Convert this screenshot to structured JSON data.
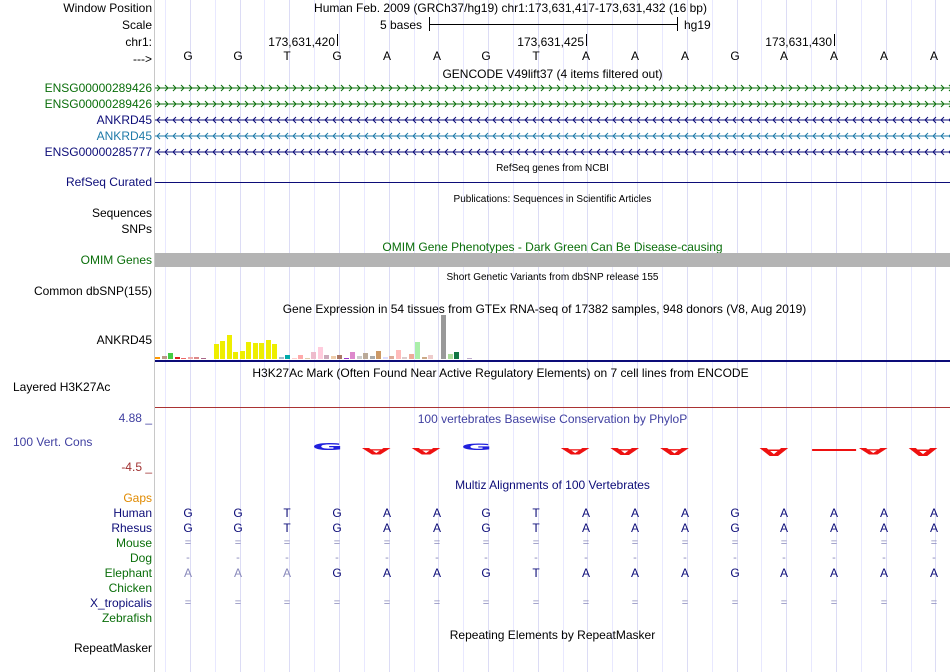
{
  "header": {
    "window_position_label": "Window Position",
    "scale_label": "Scale",
    "chrom_label": "chr1:",
    "arrow_label": "--->",
    "assembly_position": "Human Feb. 2009 (GRCh37/hg19)   chr1:173,631,417-173,631,432 (16 bp)",
    "scale_text": "5 bases",
    "scale_db": "hg19",
    "ticks": [
      "173,631,420",
      "173,631,425",
      "173,631,430"
    ],
    "sequence": [
      "G",
      "G",
      "T",
      "G",
      "A",
      "A",
      "G",
      "T",
      "A",
      "A",
      "A",
      "G",
      "A",
      "A",
      "A",
      "A"
    ]
  },
  "gencode": {
    "title": "GENCODE V49lift37 (4 items filtered out)",
    "genes": [
      {
        "name": "ENSG00000289426",
        "strand": ">",
        "color": "#0a6e0a"
      },
      {
        "name": "ENSG00000289426",
        "strand": ">",
        "color": "#0a6e0a"
      },
      {
        "name": "ANKRD45",
        "strand": "<",
        "color": "#0c0c78"
      },
      {
        "name": "ANKRD45",
        "strand": "<",
        "color": "#1e7aa8"
      },
      {
        "name": "ENSG00000285777",
        "strand": "<",
        "color": "#0c0c78"
      }
    ]
  },
  "refseq": {
    "title": "RefSeq genes from NCBI",
    "label": "RefSeq Curated",
    "color": "#0c0c78"
  },
  "publications": {
    "title": "Publications: Sequences in Scientific Articles",
    "label": "Sequences"
  },
  "snps_label": "SNPs",
  "omim": {
    "title": "OMIM Gene Phenotypes - Dark Green Can Be Disease-causing",
    "label": "OMIM Genes",
    "color": "#0a6e0a",
    "bar_color": "#b4b4b4"
  },
  "dbsnp": {
    "title": "Short Genetic Variants from dbSNP release 155",
    "label": "Common dbSNP(155)"
  },
  "gtex": {
    "title": "Gene Expression in 54 tissues from GTEx RNA-seq of 17382 samples, 948 donors (V8, Aug 2019)",
    "label": "ANKRD45",
    "max_value": 42,
    "values": [
      2,
      3,
      6,
      2,
      1,
      2,
      2,
      1,
      0,
      14,
      17,
      23,
      7,
      8,
      16,
      15,
      15,
      18,
      14,
      2,
      4,
      1,
      4,
      1,
      7,
      11,
      4,
      3,
      4,
      1,
      7,
      3,
      6,
      3,
      8,
      2,
      3,
      9,
      2,
      5,
      16,
      2,
      4,
      0,
      42,
      5,
      7,
      0,
      1,
      0,
      0,
      0,
      0,
      0
    ],
    "colors": [
      "#ff9900",
      "#bb9988",
      "#44cc44",
      "#dd2222",
      "#ee6666",
      "#eeaaaa",
      "#dd8888",
      "#aa6688",
      "#ffffff",
      "#eeee00",
      "#eeee00",
      "#eeee00",
      "#eeee00",
      "#eeee00",
      "#eeee00",
      "#eeee00",
      "#eeee00",
      "#eeee00",
      "#eeee00",
      "#aabbcc",
      "#00aaaa",
      "#ffcccc",
      "#ffaaaa",
      "#ddccaa",
      "#eebbcc",
      "#ffccdd",
      "#ccaabb",
      "#eeccaa",
      "#aa7766",
      "#9933cc",
      "#dd88cc",
      "#cccccc",
      "#bbaa99",
      "#aaaaaa",
      "#cc9966",
      "#ddddff",
      "#ddaa99",
      "#ffbbbb",
      "#ddcccc",
      "#eeaa99",
      "#aaeeaa",
      "#ccaa88",
      "#eecccc",
      "#ffffff",
      "#999999",
      "#aadd99",
      "#117744",
      "#ccccff",
      "#bbaacc",
      "#ffffff",
      "#ffffff",
      "#ffffff",
      "#ffffff",
      "#ffffff"
    ]
  },
  "h3k27ac": {
    "title": "H3K27Ac Mark (Often Found Near Active Regulatory Elements) on 7 cell lines from ENCODE",
    "label": "Layered H3K27Ac"
  },
  "phylop": {
    "title": "100 vertebrates Basewise Conservation by PhyloP",
    "label": "100 Vert. Cons",
    "max_label": "4.88 _",
    "min_label": "-4.5 _",
    "max_color": "#3f3fa0",
    "min_color": "#a03030",
    "pos_color": "#2020dd",
    "neg_color": "#ee1111",
    "bases": [
      {
        "base": "",
        "value": 0
      },
      {
        "base": "",
        "value": 0
      },
      {
        "base": "",
        "value": 0
      },
      {
        "base": "G",
        "value": 1.4
      },
      {
        "base": "A",
        "value": -1.0
      },
      {
        "base": "A",
        "value": -1.0
      },
      {
        "base": "G",
        "value": 1.2
      },
      {
        "base": "",
        "value": 0
      },
      {
        "base": "A",
        "value": -1.0
      },
      {
        "base": "A",
        "value": -1.4
      },
      {
        "base": "A",
        "value": -1.4
      },
      {
        "base": "",
        "value": 0
      },
      {
        "base": "A",
        "value": -1.5
      },
      {
        "base": "",
        "value": -0.15
      },
      {
        "base": "A",
        "value": -1.2
      },
      {
        "base": "A",
        "value": -1.5
      }
    ]
  },
  "multiz": {
    "title": "Multiz Alignments of 100 Vertebrates",
    "gaps_label": "Gaps",
    "species": [
      {
        "name": "Human",
        "color": "#0c0c78",
        "base_color": "#0c0c78",
        "bases": [
          "G",
          "G",
          "T",
          "G",
          "A",
          "A",
          "G",
          "T",
          "A",
          "A",
          "A",
          "G",
          "A",
          "A",
          "A",
          "A"
        ]
      },
      {
        "name": "Rhesus",
        "color": "#0c0c78",
        "base_color": "#0c0c78",
        "bases": [
          "G",
          "G",
          "T",
          "G",
          "A",
          "A",
          "G",
          "T",
          "A",
          "A",
          "A",
          "G",
          "A",
          "A",
          "A",
          "A"
        ]
      },
      {
        "name": "Mouse",
        "color": "#0a6e0a",
        "base_color": "#8888bb",
        "bases": [
          "=",
          "=",
          "=",
          "=",
          "=",
          "=",
          "=",
          "=",
          "=",
          "=",
          "=",
          "=",
          "=",
          "=",
          "=",
          "="
        ]
      },
      {
        "name": "Dog",
        "color": "#0a6e0a",
        "base_color": "#8888bb",
        "bases": [
          "-",
          "-",
          "-",
          "-",
          "-",
          "-",
          "-",
          "-",
          "-",
          "-",
          "-",
          "-",
          "-",
          "-",
          "-",
          "-"
        ]
      },
      {
        "name": "Elephant",
        "color": "#0a6e0a",
        "base_color": "#0c0c78",
        "bases": [
          "A",
          "A",
          "A",
          "G",
          "A",
          "A",
          "G",
          "T",
          "A",
          "A",
          "A",
          "G",
          "A",
          "A",
          "A",
          "A"
        ]
      },
      {
        "name": "Chicken",
        "color": "#0a6e0a",
        "base_color": "#8888bb",
        "bases": [
          "",
          "",
          "",
          "",
          "",
          "",
          "",
          "",
          "",
          "",
          "",
          "",
          "",
          "",
          "",
          ""
        ]
      },
      {
        "name": "X_tropicalis",
        "color": "#0c0c78",
        "base_color": "#8888bb",
        "bases": [
          "=",
          "=",
          "=",
          "=",
          "=",
          "=",
          "=",
          "=",
          "=",
          "=",
          "=",
          "=",
          "=",
          "=",
          "=",
          "="
        ]
      },
      {
        "name": "Zebrafish",
        "color": "#0a6e0a",
        "base_color": "#8888bb",
        "bases": [
          "",
          "",
          "",
          "",
          "",
          "",
          "",
          "",
          "",
          "",
          "",
          "",
          "",
          "",
          "",
          ""
        ]
      }
    ]
  },
  "repeatmasker": {
    "title": "Repeating Elements by RepeatMasker",
    "label": "RepeatMasker"
  }
}
